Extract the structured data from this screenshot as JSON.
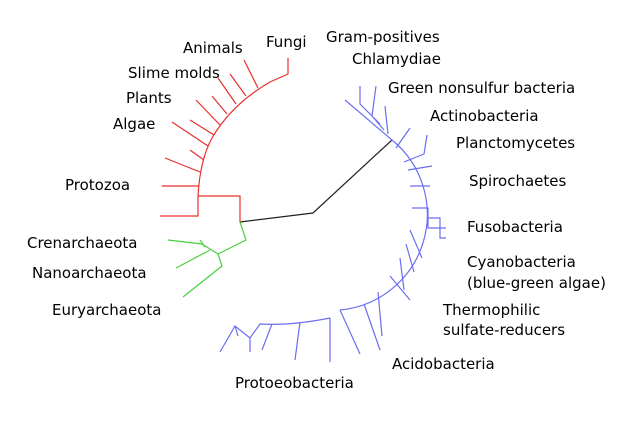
{
  "eukaryota": [
    "Animals",
    "Fungi",
    "Slime molds",
    "Plants",
    "Algae",
    "Protozoa"
  ],
  "archaea": [
    "Crenarchaeota",
    "Nanoarchaeota",
    "Euryarchaeota"
  ],
  "bacteria": [
    "Gram-positives",
    "Chlamydiae",
    "Green nonsulfur bacteria",
    "Actinobacteria",
    "Planctomycetes",
    "Spirochaetes",
    "Fusobacteria",
    [
      "Cyanobacteria",
      "(blue-green algae)"
    ],
    [
      "Thermophilic",
      "sulfate-reducers"
    ],
    "Acidobacteria",
    "Protoeobacteria"
  ]
}
